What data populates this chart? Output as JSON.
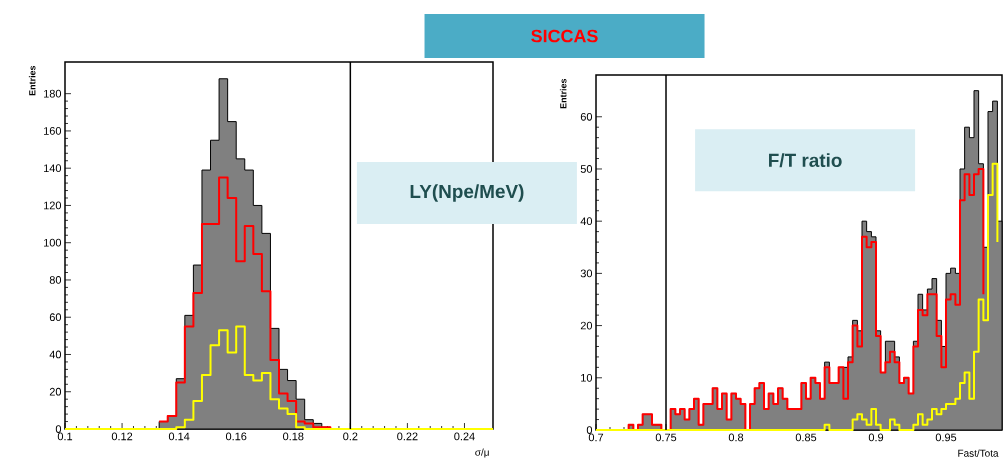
{
  "chart_data": [
    {
      "type": "histogram",
      "title": "LY(Npe/MeV)",
      "xlabel": "σ/μ",
      "ylabel": "Entries",
      "xlim": [
        0.1,
        0.25
      ],
      "ylim": [
        0,
        197
      ],
      "xticks": [
        0.1,
        0.12,
        0.14,
        0.16,
        0.18,
        0.2,
        0.22,
        0.24
      ],
      "yticks": [
        0,
        20,
        40,
        60,
        80,
        100,
        120,
        140,
        160,
        180
      ],
      "bins": [
        0.1,
        0.103,
        0.106,
        0.109,
        0.112,
        0.115,
        0.118,
        0.121,
        0.124,
        0.127,
        0.13,
        0.133,
        0.136,
        0.139,
        0.142,
        0.145,
        0.148,
        0.151,
        0.154,
        0.157,
        0.16,
        0.163,
        0.166,
        0.169,
        0.172,
        0.175,
        0.178,
        0.181,
        0.184,
        0.187,
        0.19,
        0.193,
        0.196,
        0.199,
        0.202,
        0.205,
        0.208,
        0.211,
        0.214,
        0.217,
        0.22,
        0.223,
        0.226,
        0.229,
        0.232,
        0.235,
        0.238,
        0.241,
        0.244,
        0.247,
        0.25
      ],
      "series": [
        {
          "color": "#808080",
          "values": [
            0,
            0,
            0,
            0,
            0,
            0,
            0,
            0,
            0,
            0,
            0,
            4,
            7,
            27,
            61,
            88,
            139,
            155,
            188,
            165,
            145,
            139,
            120,
            105,
            54,
            32,
            26,
            16,
            5,
            3,
            1,
            0,
            0,
            0,
            0,
            0,
            0,
            0,
            0,
            0,
            0,
            0,
            0,
            0,
            0,
            0,
            0,
            0,
            0,
            0
          ]
        },
        {
          "type": "step",
          "name": "SICCAS",
          "color": "#ff0000",
          "x": [
            0.133,
            0.136,
            0.139,
            0.142,
            0.145,
            0.148,
            0.151,
            0.154,
            0.157,
            0.16,
            0.163,
            0.166,
            0.169,
            0.172,
            0.175,
            0.178,
            0.181,
            0.184,
            0.187,
            0.19,
            0.193
          ],
          "values": [
            4,
            7,
            25,
            55,
            73,
            110,
            110,
            135,
            124,
            90,
            109,
            94,
            74,
            37,
            19,
            15,
            4,
            3,
            1,
            1,
            0
          ]
        },
        {
          "type": "step",
          "color": "#ffff00",
          "x": [
            0.1,
            0.103,
            0.106,
            0.109,
            0.112,
            0.115,
            0.118,
            0.121,
            0.124,
            0.127,
            0.13,
            0.133,
            0.136,
            0.139,
            0.142,
            0.145,
            0.148,
            0.151,
            0.154,
            0.157,
            0.16,
            0.163,
            0.166,
            0.169,
            0.172,
            0.175,
            0.178,
            0.181,
            0.184,
            0.187,
            0.19,
            0.193,
            0.196,
            0.199,
            0.202,
            0.205,
            0.208,
            0.211,
            0.214,
            0.217,
            0.22,
            0.223,
            0.226,
            0.229,
            0.232,
            0.235,
            0.238,
            0.241,
            0.244,
            0.247,
            0.25
          ],
          "values": [
            0,
            0,
            0,
            0,
            0,
            0,
            0,
            0,
            0,
            0,
            0,
            0,
            0,
            1,
            5,
            15,
            29,
            45,
            53,
            41,
            55,
            29,
            26,
            30,
            16,
            11,
            8,
            1,
            0,
            0,
            0,
            0,
            0,
            0,
            0,
            0,
            0,
            0,
            0,
            0,
            0,
            0,
            0,
            0,
            0,
            0,
            0,
            0,
            0,
            0,
            0
          ]
        }
      ],
      "ref_lines": [
        {
          "axis": "x",
          "value": 0.2
        }
      ]
    },
    {
      "type": "histogram",
      "title": "F/T ratio",
      "xlabel": "Fast/Tota",
      "ylabel": "Entries",
      "xlim": [
        0.7,
        0.99
      ],
      "ylim": [
        0,
        68
      ],
      "xticks": [
        0.7,
        0.75,
        0.8,
        0.85,
        0.9,
        0.95
      ],
      "yticks": [
        0,
        10,
        20,
        30,
        40,
        50,
        60
      ],
      "bins": [
        0.7,
        0.7033,
        0.7067,
        0.71,
        0.7133,
        0.7167,
        0.72,
        0.7233,
        0.7267,
        0.73,
        0.7333,
        0.7367,
        0.74,
        0.7433,
        0.7467,
        0.75,
        0.7533,
        0.7567,
        0.76,
        0.7633,
        0.7667,
        0.77,
        0.7733,
        0.7767,
        0.78,
        0.7833,
        0.7867,
        0.79,
        0.7933,
        0.7967,
        0.8,
        0.8033,
        0.8067,
        0.81,
        0.8133,
        0.8167,
        0.82,
        0.8233,
        0.8267,
        0.83,
        0.8333,
        0.8367,
        0.84,
        0.8433,
        0.8467,
        0.85,
        0.8533,
        0.8567,
        0.86,
        0.8633,
        0.8667,
        0.87,
        0.8733,
        0.8767,
        0.88,
        0.8833,
        0.8867,
        0.89,
        0.8933,
        0.8967,
        0.9,
        0.9033,
        0.9067,
        0.91,
        0.9133,
        0.9167,
        0.92,
        0.9233,
        0.9267,
        0.93,
        0.9333,
        0.9367,
        0.94,
        0.9433,
        0.9467,
        0.95,
        0.9533,
        0.9567,
        0.96,
        0.9633,
        0.9667,
        0.97,
        0.9733,
        0.9767,
        0.98,
        0.9833,
        0.9867,
        0.99
      ],
      "series": [
        {
          "color": "#808080",
          "values": [
            0,
            0,
            0,
            0,
            0,
            0,
            0,
            1,
            0,
            1,
            3,
            3,
            1,
            1,
            0,
            0,
            4,
            3,
            4,
            2,
            4,
            6,
            1,
            5,
            5,
            8,
            4,
            7,
            2,
            7,
            6,
            5,
            0,
            5,
            8,
            9,
            4,
            7,
            5,
            8,
            6,
            4,
            4,
            4,
            9,
            6,
            10,
            9,
            6,
            13,
            9,
            9,
            12,
            12,
            14,
            21,
            19,
            40,
            38,
            37,
            19,
            11,
            17,
            17,
            14,
            9,
            10,
            7,
            17,
            26,
            23,
            27,
            29,
            21,
            16,
            30,
            31,
            30,
            50,
            58,
            56,
            65,
            51,
            35,
            61,
            63,
            40
          ]
        },
        {
          "type": "step",
          "color": "#ff0000",
          "x": [
            0.7167,
            0.72,
            0.7233,
            0.7267,
            0.73,
            0.7333,
            0.7367,
            0.74,
            0.7433,
            0.7467,
            0.75,
            0.7533,
            0.7567,
            0.76,
            0.7633,
            0.7667,
            0.77,
            0.7733,
            0.7767,
            0.78,
            0.7833,
            0.7867,
            0.79,
            0.7933,
            0.7967,
            0.8,
            0.8033,
            0.8067,
            0.81,
            0.8133,
            0.8167,
            0.82,
            0.8233,
            0.8267,
            0.83,
            0.8333,
            0.8367,
            0.84,
            0.8433,
            0.8467,
            0.85,
            0.8533,
            0.8567,
            0.86,
            0.8633,
            0.8667,
            0.87,
            0.8733,
            0.8767,
            0.88,
            0.8833,
            0.8867,
            0.89,
            0.8933,
            0.8967,
            0.9,
            0.9033,
            0.9067,
            0.91,
            0.9133,
            0.9167,
            0.92,
            0.9233,
            0.9267,
            0.93,
            0.9333,
            0.9367,
            0.94,
            0.9433,
            0.9467,
            0.95,
            0.9533,
            0.9567,
            0.96,
            0.9633,
            0.9667,
            0.97,
            0.9733,
            0.9767
          ],
          "values": [
            0,
            0,
            1,
            0,
            1,
            3,
            3,
            1,
            1,
            0,
            0,
            4,
            3,
            4,
            2,
            4,
            6,
            1,
            5,
            5,
            8,
            4,
            7,
            2,
            7,
            6,
            5,
            0,
            5,
            8,
            9,
            4,
            7,
            5,
            8,
            6,
            4,
            4,
            4,
            9,
            6,
            10,
            9,
            6,
            12,
            9,
            9,
            12,
            6,
            13,
            20,
            16,
            37,
            35,
            36,
            18,
            11,
            13,
            15,
            13,
            9,
            10,
            7,
            16,
            23,
            22,
            26,
            26,
            18,
            12,
            25,
            26,
            24,
            44,
            49,
            45,
            49,
            50,
            26
          ]
        },
        {
          "type": "step",
          "color": "#ffff00",
          "x": [
            0.7,
            0.7033,
            0.7067,
            0.71,
            0.7133,
            0.7167,
            0.72,
            0.7233,
            0.7267,
            0.73,
            0.7333,
            0.7367,
            0.74,
            0.7433,
            0.7467,
            0.75,
            0.7533,
            0.7567,
            0.76,
            0.7633,
            0.7667,
            0.77,
            0.7733,
            0.7767,
            0.78,
            0.7833,
            0.7867,
            0.79,
            0.7933,
            0.7967,
            0.8,
            0.8033,
            0.8067,
            0.81,
            0.8133,
            0.8167,
            0.82,
            0.8233,
            0.8267,
            0.83,
            0.8333,
            0.8367,
            0.84,
            0.8433,
            0.8467,
            0.85,
            0.8533,
            0.8567,
            0.86,
            0.8633,
            0.8667,
            0.87,
            0.8733,
            0.8767,
            0.88,
            0.8833,
            0.8867,
            0.89,
            0.8933,
            0.8967,
            0.9,
            0.9033,
            0.9067,
            0.91,
            0.9133,
            0.9167,
            0.92,
            0.9233,
            0.9267,
            0.93,
            0.9333,
            0.9367,
            0.94,
            0.9433,
            0.9467,
            0.95,
            0.9533,
            0.9567,
            0.96,
            0.9633,
            0.9667,
            0.97,
            0.9733,
            0.9767,
            0.98,
            0.9833,
            0.9867
          ],
          "values": [
            0,
            0,
            0,
            0,
            0,
            0,
            0,
            0,
            0,
            0,
            0,
            0,
            0,
            0,
            0,
            0,
            0,
            0,
            0,
            0,
            0,
            0,
            0,
            0,
            0,
            0,
            0,
            0,
            0,
            0,
            0,
            0,
            0,
            0,
            0,
            0,
            0,
            0,
            0,
            0,
            0,
            0,
            0,
            0,
            0,
            0,
            0,
            0,
            0,
            1,
            0,
            0,
            0,
            0,
            0,
            2,
            3,
            2,
            1,
            4,
            1,
            0,
            0,
            2,
            1,
            0,
            0,
            0,
            1,
            3,
            1,
            2,
            4,
            3,
            4,
            5,
            5,
            6,
            9,
            11,
            6,
            15,
            25,
            21,
            45,
            51,
            36
          ]
        }
      ],
      "ref_lines": [
        {
          "axis": "x",
          "value": 0.75
        }
      ]
    }
  ]
}
